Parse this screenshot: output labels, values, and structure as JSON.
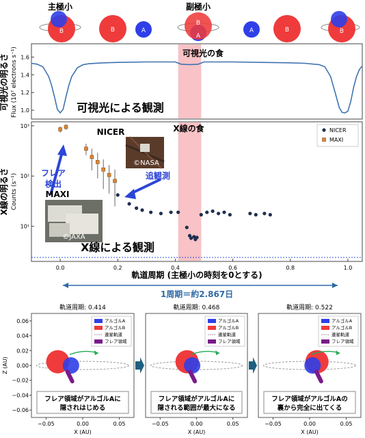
{
  "colors": {
    "star_a": "#2f3fe8",
    "star_b": "#ef3b3b",
    "eclipse_band": "#f6b3b8",
    "flux_line": "#3f73b0",
    "nicer": "#1f2f4f",
    "maxi": "#d9883a",
    "flare": "#7a1a8a",
    "annot_blue": "#2b45d6",
    "period_blue": "#2f6aa6",
    "arrow_block": "#1f5f7f"
  },
  "top_diagram": {
    "primary_label": "主極小",
    "secondary_label": "副極小",
    "star_a": "A",
    "star_b": "B"
  },
  "chart_data": [
    {
      "type": "line",
      "title": "",
      "xlabel": "",
      "ylabel": "Flux (10⁷ electrons s⁻¹)",
      "side_label": "可視光の明るさ",
      "xlim": [
        -0.1,
        1.05
      ],
      "ylim": [
        0.9,
        1.75
      ],
      "yticks": [
        "1.0",
        "1.2",
        "1.4",
        "1.6"
      ],
      "ytick_values": [
        1.0,
        1.2,
        1.4,
        1.6
      ],
      "eclipse_band": [
        0.41,
        0.49
      ],
      "eclipse_label": "可視光の食",
      "inner_label": "可視光による観測",
      "x": [
        -0.1,
        -0.08,
        -0.06,
        -0.04,
        -0.03,
        -0.02,
        -0.01,
        0.0,
        0.01,
        0.02,
        0.03,
        0.04,
        0.06,
        0.08,
        0.1,
        0.15,
        0.2,
        0.3,
        0.4,
        0.42,
        0.45,
        0.48,
        0.5,
        0.6,
        0.7,
        0.8,
        0.85,
        0.9,
        0.92,
        0.94,
        0.96,
        0.97,
        0.98,
        0.99,
        1.0,
        1.01,
        1.02,
        1.03,
        1.04,
        1.05
      ],
      "y": [
        1.53,
        1.52,
        1.49,
        1.38,
        1.28,
        1.15,
        1.01,
        0.97,
        1.01,
        1.15,
        1.28,
        1.38,
        1.48,
        1.515,
        1.525,
        1.535,
        1.54,
        1.545,
        1.545,
        1.52,
        1.515,
        1.52,
        1.545,
        1.545,
        1.54,
        1.535,
        1.53,
        1.515,
        1.49,
        1.38,
        1.15,
        1.03,
        0.975,
        0.97,
        0.99,
        1.1,
        1.26,
        1.38,
        1.46,
        1.5
      ]
    },
    {
      "type": "scatter",
      "title": "",
      "xlabel": "軌道周期 (主極小の時刻を0とする)",
      "ylabel": "Counts (s⁻¹)",
      "side_label": "X線の明るさ",
      "xlim": [
        -0.1,
        1.05
      ],
      "log_y": true,
      "ylim": [
        2,
        1200
      ],
      "xticks": [
        "0.0",
        "0.2",
        "0.4",
        "0.6",
        "0.8",
        "1.0"
      ],
      "xtick_values": [
        0.0,
        0.2,
        0.4,
        0.6,
        0.8,
        1.0
      ],
      "yticks": [
        "10¹",
        "10²",
        "10³"
      ],
      "ytick_values": [
        10,
        100,
        1000
      ],
      "eclipse_band": [
        0.41,
        0.49
      ],
      "eclipse_label": "X線の食",
      "legend": {
        "position": "top-right",
        "entries": [
          "NICER",
          "MAXI"
        ]
      },
      "baseline": 2.4,
      "series": [
        {
          "name": "MAXI",
          "x": [
            0.0,
            0.02,
            0.09,
            0.11,
            0.13,
            0.15,
            0.17,
            0.19
          ],
          "y": [
            850,
            950,
            350,
            240,
            190,
            135,
            105,
            80
          ],
          "err": [
            120,
            120,
            90,
            110,
            100,
            80,
            60,
            55
          ]
        },
        {
          "name": "NICER",
          "x": [
            0.2,
            0.24,
            0.265,
            0.285,
            0.315,
            0.35,
            0.385,
            0.41,
            0.44,
            0.45,
            0.455,
            0.465,
            0.47,
            0.475,
            0.49,
            0.51,
            0.53,
            0.55,
            0.57,
            0.59,
            0.66,
            0.68,
            0.71,
            0.73
          ],
          "y": [
            42,
            28,
            23,
            21,
            19,
            18,
            19,
            19,
            9.5,
            6.5,
            5.8,
            6.2,
            5.5,
            6.0,
            17,
            19,
            20,
            18,
            19,
            17,
            18,
            17,
            18,
            17
          ]
        }
      ],
      "annotations": {
        "nicer": "NICER",
        "maxi": "MAXI",
        "flare_detect_1": "フレア",
        "flare_detect_2": "検出",
        "followup": "追観測",
        "photo_jaxa": "©JAXA",
        "photo_nasa": "©NASA",
        "inner_label": "X線による観測"
      }
    }
  ],
  "period": {
    "label": "1周期＝約2.867日"
  },
  "panels": [
    {
      "title": "軌道周期: 0.414",
      "caption_1": "フレア領域がアルゴルAに",
      "caption_2": "隠されはじめる",
      "a_x": -0.016,
      "a_z": 0.0,
      "b_x": -0.034,
      "b_z": 0.005,
      "flare_x": -0.018,
      "flare_z": -0.014
    },
    {
      "title": "軌道周期: 0.468",
      "caption_1": "フレア領域がアルゴルAに",
      "caption_2": "隠される範囲が最大になる",
      "a_x": -0.006,
      "a_z": 0.0,
      "b_x": -0.013,
      "b_z": 0.005,
      "flare_x": -0.006,
      "flare_z": -0.014
    },
    {
      "title": "軌道周期: 0.522",
      "caption_1": "フレア領域がアルゴルAの",
      "caption_2": "裏から完全に出てくる",
      "a_x": 0.004,
      "a_z": 0.0,
      "b_x": 0.01,
      "b_z": 0.005,
      "flare_x": 0.012,
      "flare_z": -0.014
    }
  ],
  "panel_axes": {
    "xlabel": "X (AU)",
    "ylabel": "Z (AU)",
    "xticks": [
      "−0.05",
      "0.00",
      "0.05"
    ],
    "xtick_values": [
      -0.05,
      0.0,
      0.05
    ],
    "yticks": [
      "0.06",
      "0.04",
      "0.02",
      "0.00",
      "−0.02",
      "−0.04",
      "−0.06"
    ],
    "ytick_values": [
      0.06,
      0.04,
      0.02,
      0.0,
      -0.02,
      -0.04,
      -0.06
    ],
    "legend": [
      "アルゴルA",
      "アルゴルB",
      "連星軌道",
      "フレア領域"
    ]
  }
}
